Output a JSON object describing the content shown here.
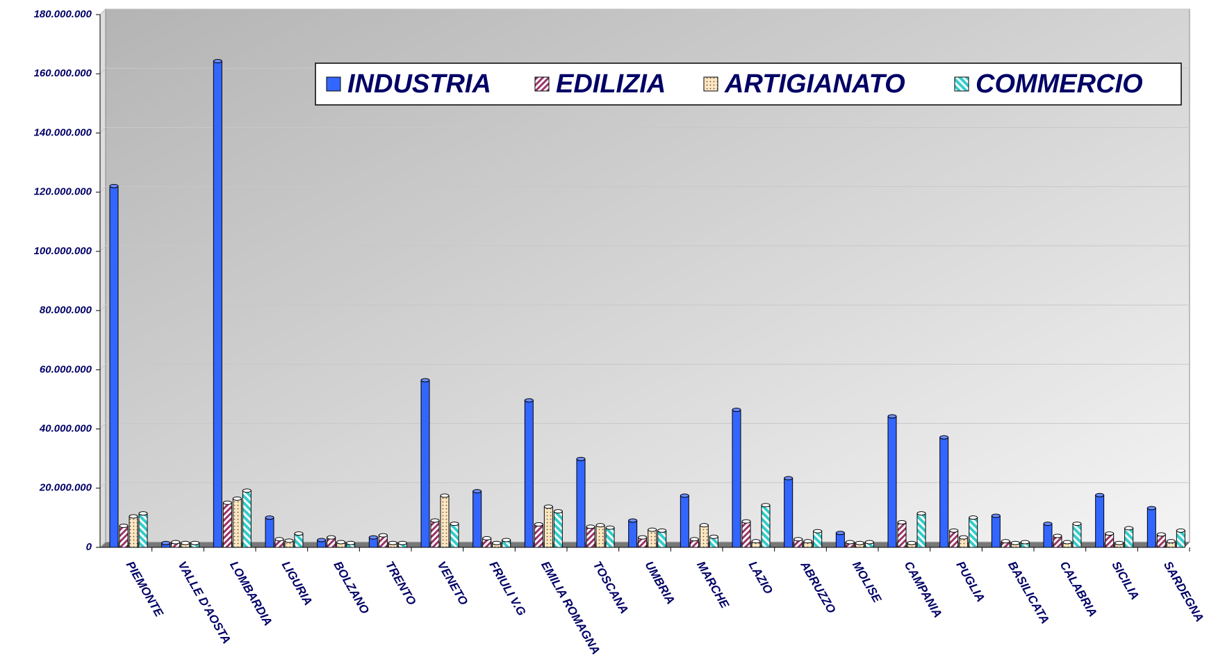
{
  "chart_data": {
    "type": "bar",
    "categories": [
      "PIEMONTE",
      "VALLE D'AOSTA",
      "LOMBARDIA",
      "LIGURIA",
      "BOLZANO",
      "TRENTO",
      "VENETO",
      "FRIULI V.G",
      "EMILIA ROMAGNA",
      "TOSCANA",
      "UMBRIA",
      "MARCHE",
      "LAZIO",
      "ABRUZZO",
      "MOLISE",
      "CAMPANIA",
      "PUGLIA",
      "BASILICATA",
      "CALABRIA",
      "SICILIA",
      "SARDEGNA"
    ],
    "series": [
      {
        "name": "INDUSTRIA",
        "color": "#3366ff",
        "values": [
          121600000,
          1000000,
          163800000,
          9600000,
          2000000,
          2900000,
          56000000,
          18500000,
          49200000,
          29400000,
          8600000,
          17000000,
          46000000,
          22900000,
          4400000,
          43800000,
          36700000,
          10200000,
          7500000,
          17200000,
          12800000
        ]
      },
      {
        "name": "EDILIZIA",
        "color": "#993366",
        "values": [
          6800000,
          1300000,
          14600000,
          2300000,
          2900000,
          3600000,
          8600000,
          2600000,
          7300000,
          6500000,
          2900000,
          2300000,
          8300000,
          2300000,
          1300000,
          8000000,
          5200000,
          1600000,
          3400000,
          4200000,
          3900000
        ]
      },
      {
        "name": "ARTIGIANATO",
        "color": "#ffe6bf",
        "values": [
          10000000,
          1000000,
          16000000,
          1800000,
          1300000,
          1000000,
          17000000,
          1000000,
          13300000,
          7000000,
          5500000,
          7000000,
          1600000,
          1600000,
          1000000,
          1000000,
          2900000,
          1000000,
          1300000,
          1000000,
          1600000
        ]
      },
      {
        "name": "COMMERCIO",
        "color": "#33cccc",
        "values": [
          11000000,
          1000000,
          18700000,
          4200000,
          1000000,
          1000000,
          7500000,
          2000000,
          11700000,
          6200000,
          5200000,
          3100000,
          13800000,
          5000000,
          1300000,
          11000000,
          9600000,
          1300000,
          7500000,
          6000000,
          5200000
        ]
      }
    ],
    "ylim": [
      0,
      180000000
    ],
    "yticks": [
      0,
      {
        "value": 20000000,
        "label": "20.000.000"
      },
      {
        "value": 40000000,
        "label": "40.000.000"
      },
      {
        "value": 60000000,
        "label": "60.000.000"
      },
      {
        "value": 80000000,
        "label": "80.000.000"
      },
      {
        "value": 100000000,
        "label": "100.000.000"
      },
      {
        "value": 120000000,
        "label": "120.000.000"
      },
      {
        "value": 140000000,
        "label": "140.000.000"
      },
      {
        "value": 160000000,
        "label": "160.000.000"
      },
      {
        "value": 180000000,
        "label": "180.000.000"
      }
    ],
    "grid": true
  }
}
